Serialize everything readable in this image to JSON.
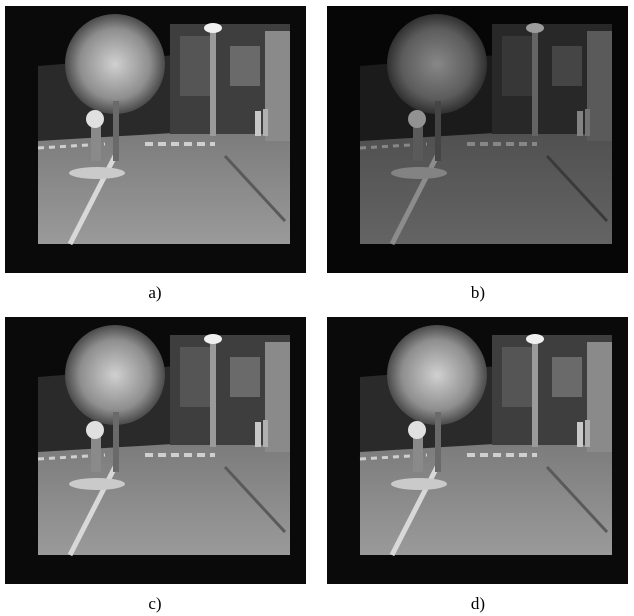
{
  "panels": [
    {
      "caption": "a)"
    },
    {
      "caption": "b)"
    },
    {
      "caption": "c)"
    },
    {
      "caption": "d)"
    }
  ]
}
